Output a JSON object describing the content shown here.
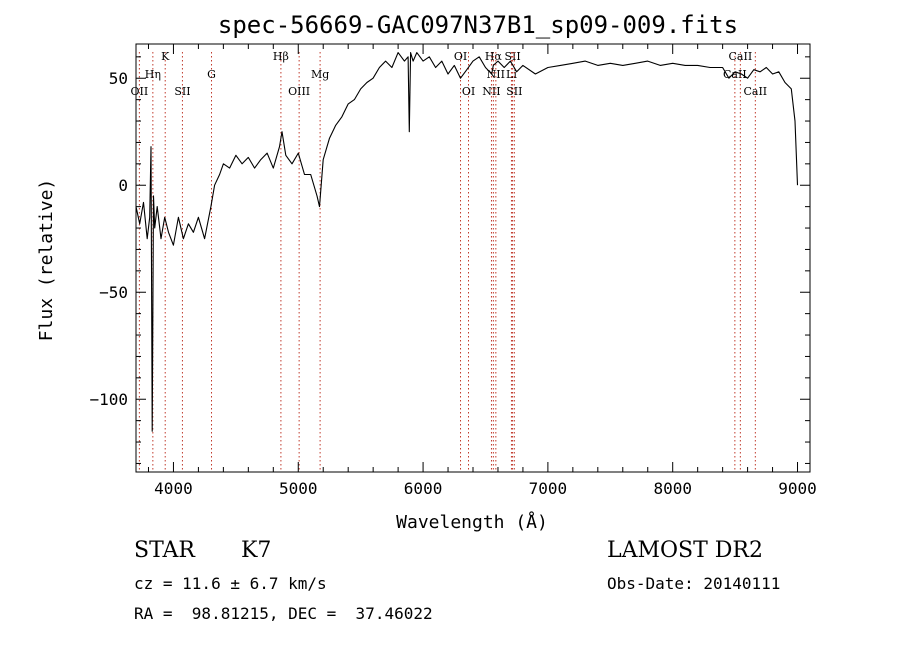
{
  "chart_data": {
    "type": "line",
    "title": "spec-56669-GAC097N37B1_sp09-009.fits",
    "xlabel": "Wavelength (Å)",
    "ylabel": "Flux (relative)",
    "xlim": [
      3700,
      9100
    ],
    "ylim": [
      -134,
      66
    ],
    "xticks": [
      4000,
      5000,
      6000,
      7000,
      8000,
      9000
    ],
    "xtick_labels": [
      "4000",
      "5000",
      "6000",
      "7000",
      "8000",
      "9000"
    ],
    "yticks": [
      -100,
      -50,
      0,
      50
    ],
    "ytick_labels": [
      "−100",
      "−50",
      "0",
      "50"
    ],
    "grid": false,
    "series": [
      {
        "color": "#000000",
        "x": [
          3700,
          3730,
          3760,
          3790,
          3810,
          3820,
          3830,
          3840,
          3850,
          3870,
          3900,
          3930,
          3960,
          4000,
          4040,
          4080,
          4120,
          4160,
          4200,
          4250,
          4300,
          4330,
          4370,
          4400,
          4450,
          4500,
          4550,
          4600,
          4650,
          4700,
          4750,
          4800,
          4850,
          4870,
          4900,
          4950,
          5000,
          5050,
          5100,
          5150,
          5170,
          5200,
          5250,
          5300,
          5350,
          5400,
          5450,
          5500,
          5550,
          5600,
          5650,
          5700,
          5750,
          5800,
          5850,
          5880,
          5890,
          5900,
          5920,
          5950,
          6000,
          6050,
          6100,
          6150,
          6200,
          6250,
          6300,
          6350,
          6400,
          6450,
          6500,
          6550,
          6563,
          6600,
          6650,
          6700,
          6750,
          6800,
          6900,
          7000,
          7100,
          7200,
          7300,
          7400,
          7500,
          7600,
          7700,
          7800,
          7900,
          8000,
          8100,
          8200,
          8300,
          8400,
          8450,
          8500,
          8550,
          8600,
          8650,
          8700,
          8750,
          8800,
          8850,
          8900,
          8950,
          8980,
          9000
        ],
        "y": [
          -10,
          -18,
          -8,
          -25,
          -15,
          18,
          -115,
          -5,
          -20,
          -10,
          -25,
          -15,
          -22,
          -28,
          -15,
          -25,
          -18,
          -22,
          -15,
          -25,
          -10,
          0,
          5,
          10,
          8,
          14,
          10,
          13,
          8,
          12,
          15,
          8,
          18,
          25,
          14,
          10,
          15,
          5,
          5,
          -5,
          -10,
          12,
          22,
          28,
          32,
          38,
          40,
          45,
          48,
          50,
          55,
          58,
          55,
          62,
          58,
          60,
          25,
          62,
          58,
          62,
          58,
          60,
          55,
          58,
          52,
          56,
          50,
          54,
          58,
          60,
          55,
          52,
          56,
          58,
          55,
          58,
          53,
          56,
          52,
          55,
          56,
          57,
          58,
          56,
          57,
          56,
          57,
          58,
          56,
          57,
          56,
          56,
          55,
          55,
          50,
          53,
          52,
          50,
          54,
          53,
          55,
          52,
          53,
          48,
          45,
          30,
          0
        ]
      }
    ],
    "line_markers": [
      {
        "name": "OII",
        "x": 3727,
        "row": 3
      },
      {
        "name": "Hη",
        "x": 3835,
        "row": 2
      },
      {
        "name": "K",
        "x": 3934,
        "row": 1
      },
      {
        "name": "SII",
        "x": 4072,
        "row": 3
      },
      {
        "name": "G",
        "x": 4305,
        "row": 2
      },
      {
        "name": "Hβ",
        "x": 4861,
        "row": 1
      },
      {
        "name": "OIII",
        "x": 5007,
        "row": 3
      },
      {
        "name": "Mg",
        "x": 5175,
        "row": 2
      },
      {
        "name": "OI",
        "x": 6300,
        "row": 1
      },
      {
        "name": "OI",
        "x": 6364,
        "row": 3
      },
      {
        "name": "NII",
        "x": 6548,
        "row": 3
      },
      {
        "name": "Hα",
        "x": 6563,
        "row": 1
      },
      {
        "name": "NII",
        "x": 6583,
        "row": 2
      },
      {
        "name": "SII",
        "x": 6717,
        "row": 1
      },
      {
        "name": "Li",
        "x": 6708,
        "row": 2
      },
      {
        "name": "SII",
        "x": 6731,
        "row": 3
      },
      {
        "name": "CaII",
        "x": 8498,
        "row": 2
      },
      {
        "name": "CaII",
        "x": 8542,
        "row": 1
      },
      {
        "name": "CaII",
        "x": 8662,
        "row": 3
      }
    ]
  },
  "info": {
    "class": "STAR",
    "subclass": "K7",
    "survey": "LAMOST DR2",
    "redshift": "cz = 11.6 ± 6.7 km/s",
    "obs_date": "Obs-Date: 20140111",
    "coords": "RA =  98.81215, DEC =  37.46022"
  }
}
